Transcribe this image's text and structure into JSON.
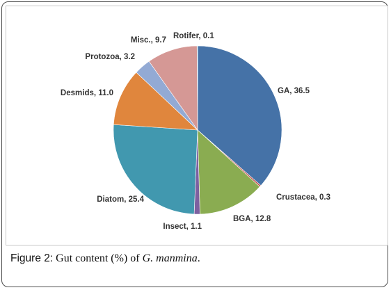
{
  "chart_data": {
    "type": "pie",
    "slices": [
      {
        "label": "GA, 36.5",
        "name": "GA",
        "value": 36.5,
        "color": "#4572a7"
      },
      {
        "label": "Crustacea, 0.3",
        "name": "Crustacea",
        "value": 0.3,
        "color": "#c0504d"
      },
      {
        "label": "BGA, 12.8",
        "name": "BGA",
        "value": 12.8,
        "color": "#8aac51"
      },
      {
        "label": "Insect, 1.1",
        "name": "Insect",
        "value": 1.1,
        "color": "#7d60a0"
      },
      {
        "label": "Diatom, 25.4",
        "name": "Diatom",
        "value": 25.4,
        "color": "#4198af"
      },
      {
        "label": "Desmids, 11.0",
        "name": "Desmids",
        "value": 11.0,
        "color": "#e0863d"
      },
      {
        "label": "Protozoa, 3.2",
        "name": "Protozoa",
        "value": 3.2,
        "color": "#93aad4"
      },
      {
        "label": "Misc.,  9.7",
        "name": "Misc.",
        "value": 9.7,
        "color": "#d59895"
      },
      {
        "label": "Rotifer, 0.1",
        "name": "Rotifer",
        "value": 0.1,
        "color": "#5e8f9e"
      }
    ]
  },
  "caption": {
    "figure_label": "Figure 2:",
    "text_before": " Gut content (%) of ",
    "species": "G. manmina",
    "text_after": "."
  }
}
